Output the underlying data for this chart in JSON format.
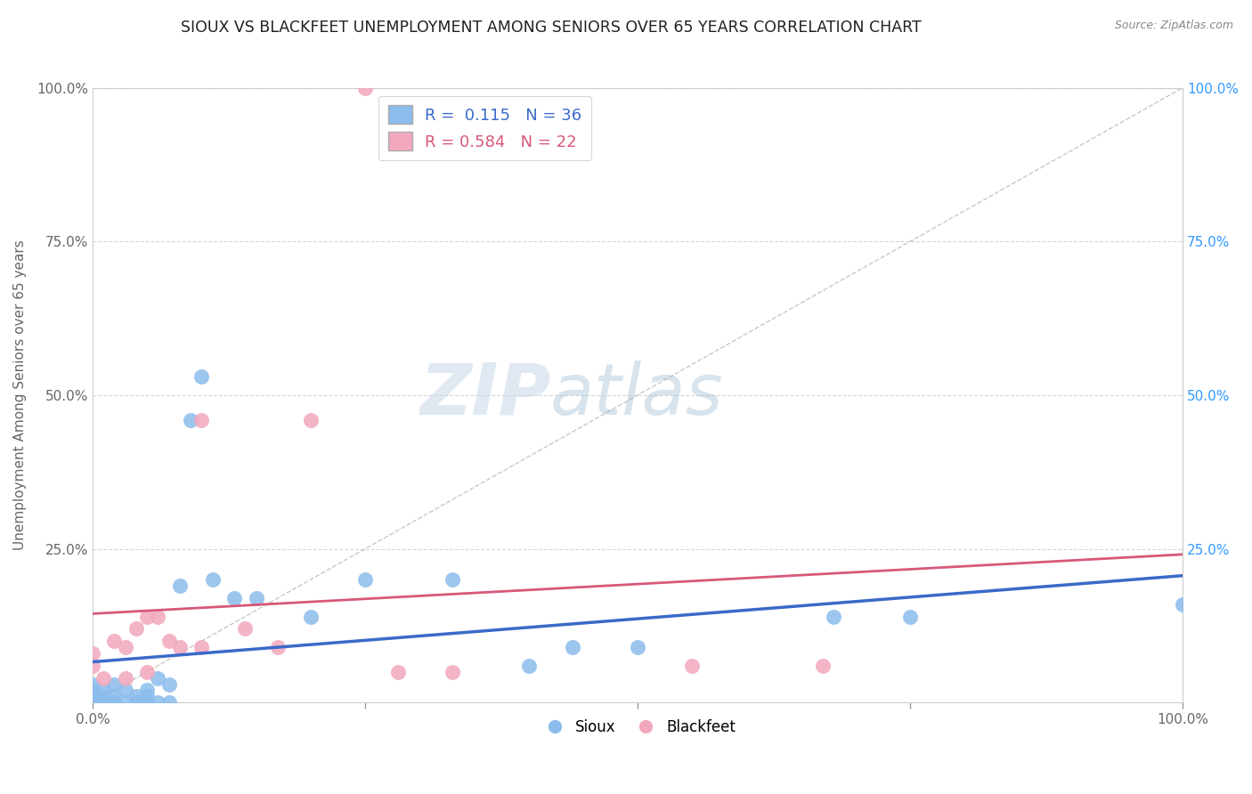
{
  "title": "SIOUX VS BLACKFEET UNEMPLOYMENT AMONG SENIORS OVER 65 YEARS CORRELATION CHART",
  "source": "Source: ZipAtlas.com",
  "ylabel": "Unemployment Among Seniors over 65 years",
  "xlabel": "",
  "xlim": [
    0,
    1.0
  ],
  "ylim": [
    0,
    1.0
  ],
  "xtick_labels": [
    "0.0%",
    "",
    "",
    "",
    "100.0%"
  ],
  "xtick_vals": [
    0.0,
    0.25,
    0.5,
    0.75,
    1.0
  ],
  "ytick_labels": [
    "25.0%",
    "50.0%",
    "75.0%",
    "100.0%"
  ],
  "ytick_vals": [
    0.25,
    0.5,
    0.75,
    1.0
  ],
  "right_ytick_labels": [
    "25.0%",
    "50.0%",
    "75.0%",
    "100.0%"
  ],
  "right_ytick_vals": [
    0.25,
    0.5,
    0.75,
    1.0
  ],
  "sioux_color": "#8BBCEC",
  "blackfeet_color": "#F2A8BC",
  "sioux_line_color": "#3A6AC8",
  "blackfeet_line_color": "#D85878",
  "sioux_R": "0.115",
  "sioux_N": "36",
  "blackfeet_R": "0.584",
  "blackfeet_N": "22",
  "watermark_zip": "ZIP",
  "watermark_atlas": "atlas",
  "background_color": "#ffffff",
  "grid_color": "#cccccc",
  "sioux_x": [
    0.0,
    0.0,
    0.0,
    0.0,
    0.01,
    0.01,
    0.01,
    0.02,
    0.02,
    0.02,
    0.03,
    0.03,
    0.04,
    0.04,
    0.05,
    0.05,
    0.05,
    0.06,
    0.06,
    0.07,
    0.07,
    0.08,
    0.09,
    0.1,
    0.11,
    0.13,
    0.15,
    0.2,
    0.25,
    0.33,
    0.4,
    0.44,
    0.5,
    0.68,
    0.75,
    1.0
  ],
  "sioux_y": [
    0.0,
    0.01,
    0.02,
    0.03,
    0.0,
    0.01,
    0.02,
    0.0,
    0.01,
    0.03,
    0.0,
    0.02,
    0.0,
    0.01,
    0.0,
    0.01,
    0.02,
    0.0,
    0.04,
    0.0,
    0.03,
    0.19,
    0.46,
    0.53,
    0.2,
    0.17,
    0.17,
    0.14,
    0.2,
    0.2,
    0.06,
    0.09,
    0.09,
    0.14,
    0.14,
    0.16
  ],
  "blackfeet_x": [
    0.0,
    0.0,
    0.01,
    0.02,
    0.03,
    0.03,
    0.04,
    0.05,
    0.05,
    0.06,
    0.07,
    0.08,
    0.1,
    0.1,
    0.14,
    0.17,
    0.2,
    0.25,
    0.28,
    0.33,
    0.55,
    0.67
  ],
  "blackfeet_y": [
    0.06,
    0.08,
    0.04,
    0.1,
    0.04,
    0.09,
    0.12,
    0.05,
    0.14,
    0.14,
    0.1,
    0.09,
    0.46,
    0.09,
    0.12,
    0.09,
    0.46,
    1.0,
    0.05,
    0.05,
    0.06,
    0.06
  ]
}
